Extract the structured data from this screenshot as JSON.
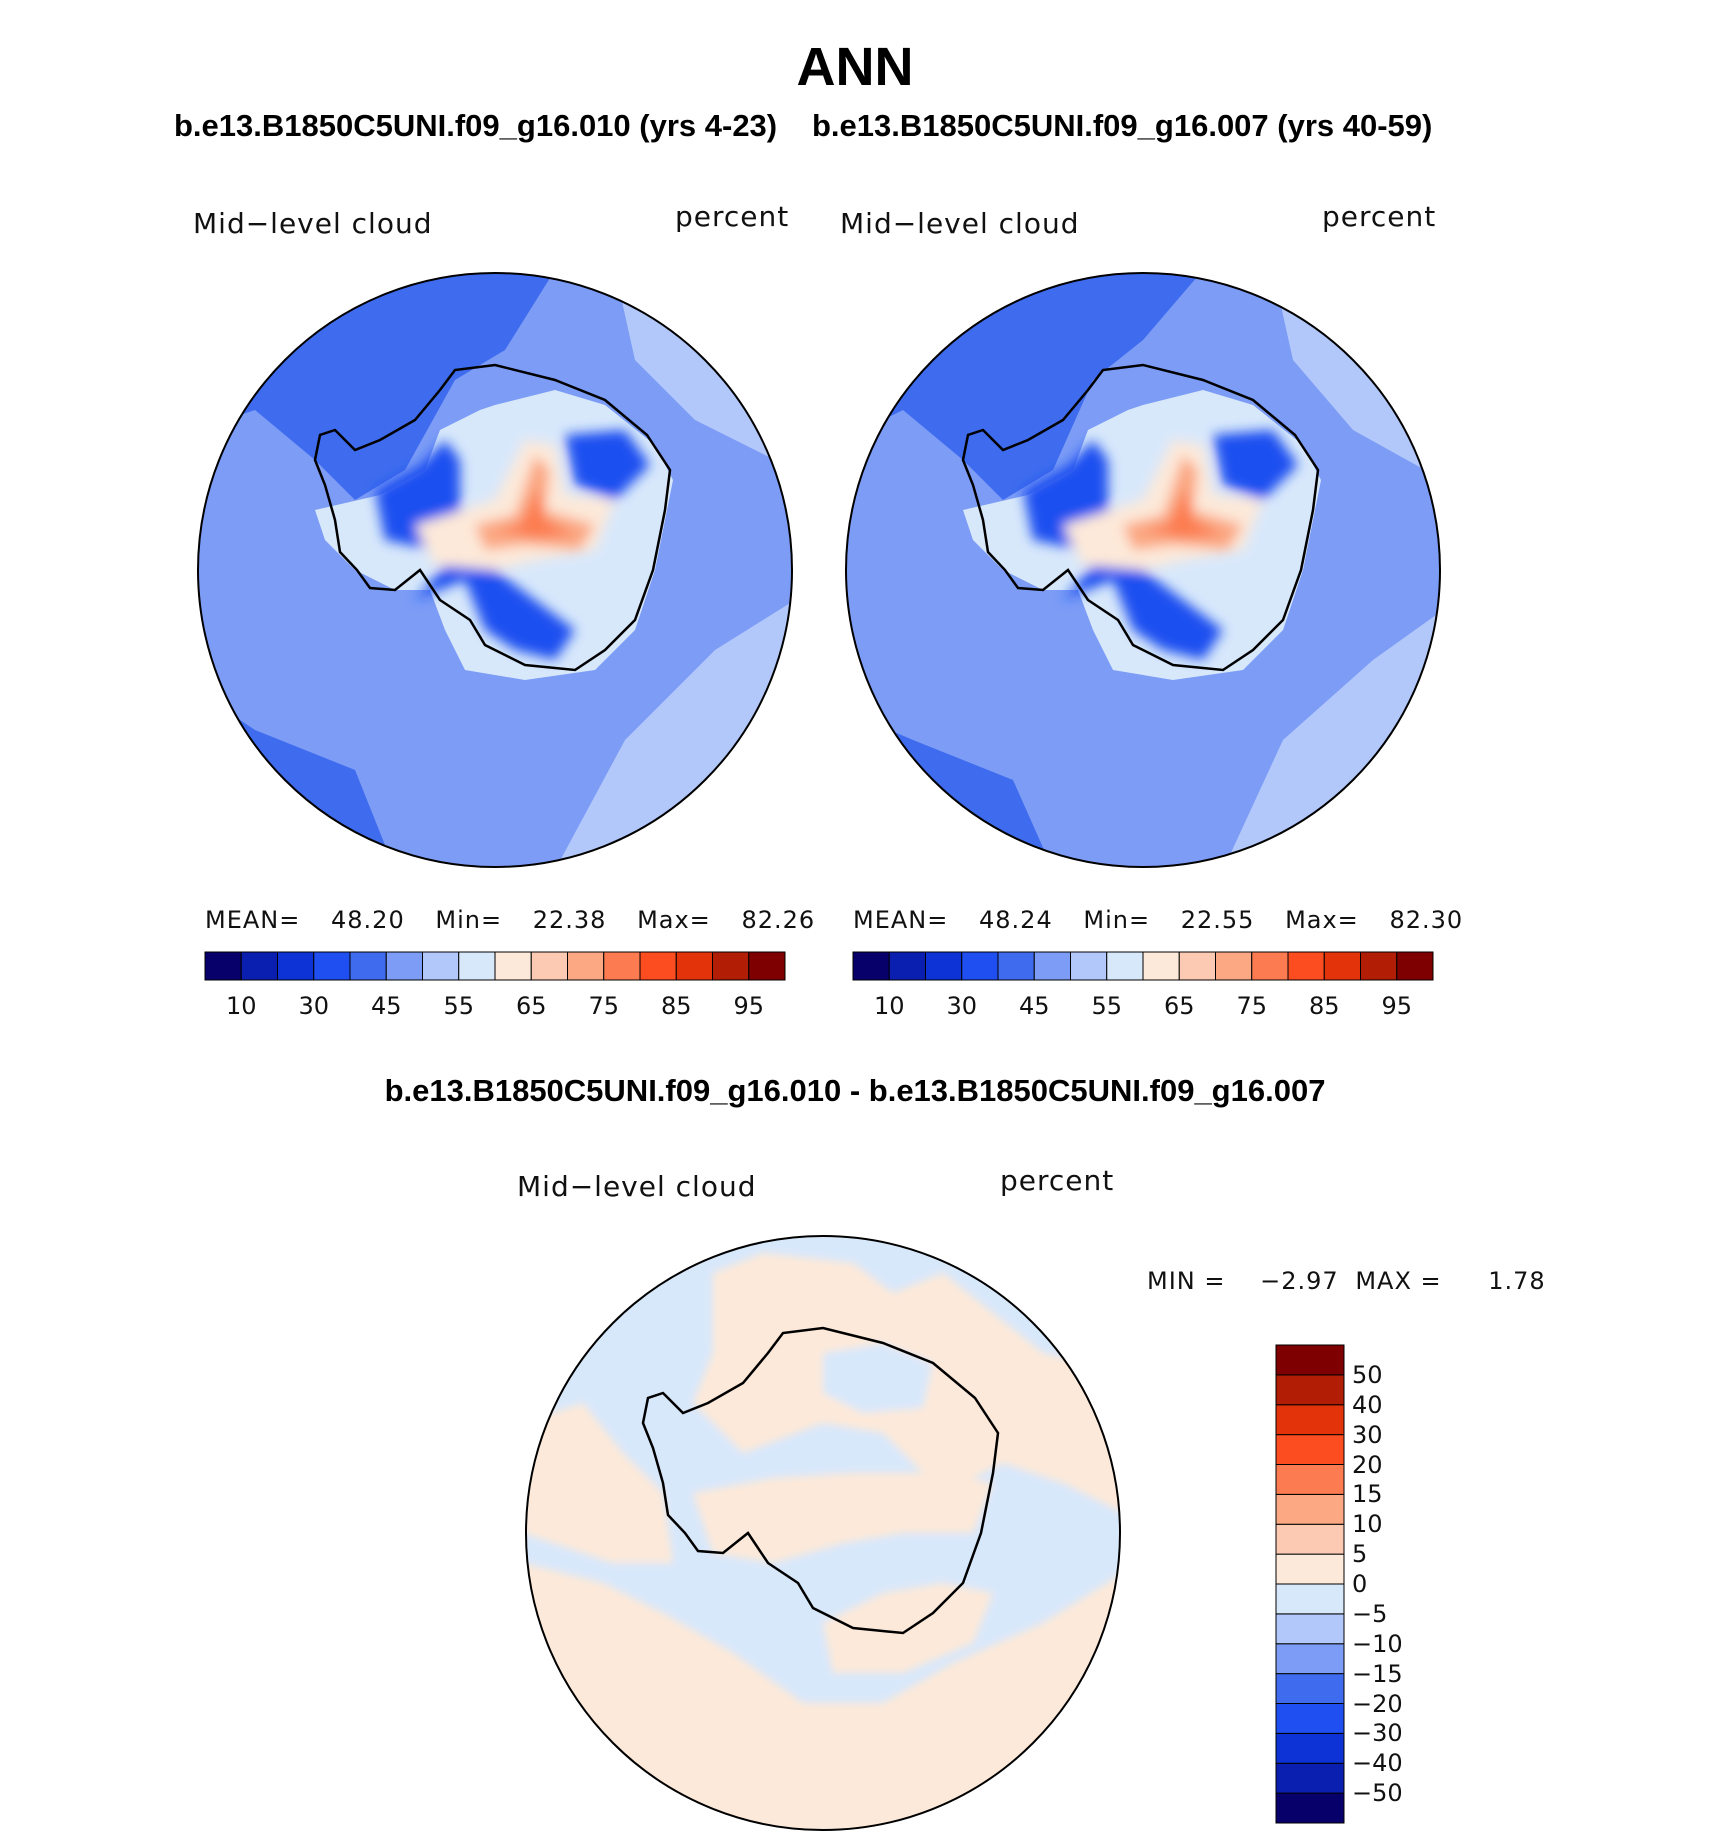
{
  "page": {
    "title": "ANN",
    "top_subtitle_left": "b.e13.B1850C5UNI.f09_g16.010 (yrs 4-23)",
    "top_subtitle_right": "b.e13.B1850C5UNI.f09_g16.007 (yrs 40-59)",
    "diff_title": "b.e13.B1850C5UNI.f09_g16.010 - b.e13.B1850C5UNI.f09_g16.007"
  },
  "panels": [
    {
      "variable": "Mid−level cloud",
      "units": "percent",
      "stats": {
        "mean_label": "MEAN=",
        "mean": "48.20",
        "min_label": "Min=",
        "min": "22.38",
        "max_label": "Max=",
        "max": "82.26"
      }
    },
    {
      "variable": "Mid−level cloud",
      "units": "percent",
      "stats": {
        "mean_label": "MEAN=",
        "mean": "48.24",
        "min_label": "Min=",
        "min": "22.55",
        "max_label": "Max=",
        "max": "82.30"
      }
    }
  ],
  "diff_panel": {
    "variable": "Mid−level cloud",
    "units": "percent",
    "stats": {
      "min_label": "MIN =",
      "min": "−2.97",
      "max_label": "MAX =",
      "max": "1.78"
    }
  },
  "colorbar_main": {
    "colors": [
      "#08006a",
      "#0a1fb0",
      "#0d33d6",
      "#1f4ff0",
      "#3f6cee",
      "#7c9cf6",
      "#b2c8fb",
      "#d8e8fb",
      "#fde9d9",
      "#fccab2",
      "#fba883",
      "#fc7b50",
      "#fb4d20",
      "#e3330a",
      "#b21d05",
      "#7f0000"
    ],
    "tick_labels": [
      "10",
      "30",
      "45",
      "55",
      "65",
      "75",
      "85",
      "95"
    ]
  },
  "colorbar_diff": {
    "colors": [
      "#08006a",
      "#0a1fb0",
      "#0d33d6",
      "#1f4ff0",
      "#3f6cee",
      "#7c9cf6",
      "#b2c8fb",
      "#d8e8fb",
      "#fde9d9",
      "#fccab2",
      "#fba883",
      "#fc7b50",
      "#fb4d20",
      "#e3330a",
      "#b21d05",
      "#7f0000"
    ],
    "tick_labels": [
      "−50",
      "−40",
      "−30",
      "−20",
      "−15",
      "−10",
      "−5",
      "0",
      "5",
      "10",
      "15",
      "20",
      "30",
      "40",
      "50"
    ]
  },
  "map_colors": {
    "ocean_dark": "#3f6cee",
    "ocean_mid": "#7c9cf6",
    "ocean_light": "#b2c8fb",
    "land_low": "#1f4ff0",
    "land_pale": "#d8e8fb",
    "land_warm": "#fde9d9",
    "land_peak": "#fba883",
    "land_hot": "#fc7b50",
    "diff_pos": "#fde9d9",
    "diff_neg": "#d8e8fb"
  }
}
